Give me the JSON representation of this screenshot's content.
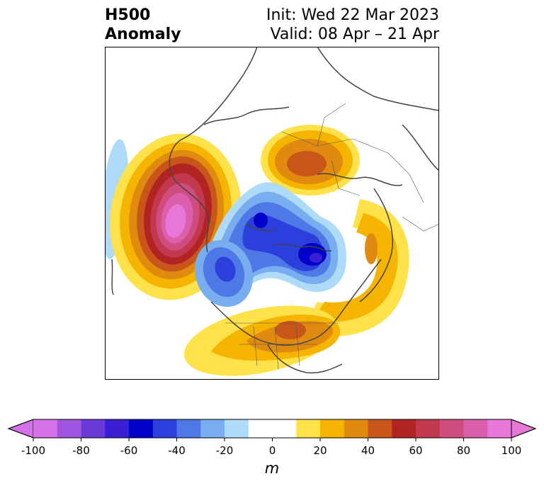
{
  "header": {
    "left_line1": "H500",
    "left_line2": "Anomaly",
    "right_line1": "Init: Wed 22 Mar 2023",
    "right_line2": "Valid: 08 Apr – 21 Apr"
  },
  "colorbar": {
    "unit": "m",
    "range": [
      -100,
      100
    ],
    "step": 10,
    "tick_labels": [
      "-100",
      "-80",
      "-60",
      "-40",
      "-20",
      "0",
      "20",
      "40",
      "60",
      "80",
      "100"
    ],
    "colors": [
      "#d670e8",
      "#9f55e0",
      "#6a3ad9",
      "#3a1fd4",
      "#0000c8",
      "#2a3fdc",
      "#4e78e6",
      "#78aef0",
      "#aedcf8",
      "#ffffff",
      "#ffffff",
      "#ffe14a",
      "#f5b400",
      "#e08a10",
      "#c8561a",
      "#b22424",
      "#c2384f",
      "#cf4c7e",
      "#dc5fae",
      "#e878d8"
    ]
  },
  "anomaly_centers": [
    {
      "region": "northeast-pacific-gulf-of-alaska",
      "sign": "positive",
      "peak_m": 95
    },
    {
      "region": "eastern-siberia",
      "sign": "positive",
      "peak_m": 50
    },
    {
      "region": "eastern-united-states",
      "sign": "positive",
      "peak_m": 50
    },
    {
      "region": "northern-atlantic-greenland-sea",
      "sign": "positive",
      "peak_m": 30
    },
    {
      "region": "canadian-arctic-archipelago",
      "sign": "negative",
      "peak_m": -60
    },
    {
      "region": "hudson-bay-labrador",
      "sign": "negative",
      "peak_m": -60
    },
    {
      "region": "western-canada",
      "sign": "negative",
      "peak_m": -40
    },
    {
      "region": "central-north-pacific",
      "sign": "negative",
      "peak_m": -20
    }
  ]
}
